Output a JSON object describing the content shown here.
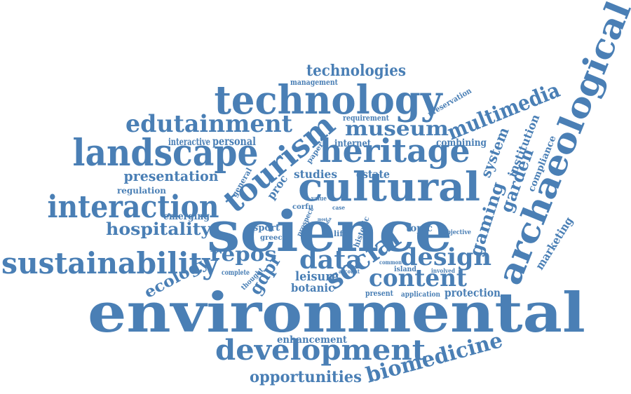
{
  "colors": {
    "word": "#4a7fb5",
    "background": "#ffffff"
  },
  "words": [
    "environmental",
    "science",
    "archaeological",
    "technology",
    "cultural",
    "heritage",
    "landscape",
    "tourism",
    "interaction",
    "sustainability",
    "development",
    "edutainment",
    "museum",
    "multimedia",
    "technologies",
    "social",
    "content",
    "data",
    "design",
    "biomedicine",
    "hospitality",
    "gaming",
    "repos",
    "opportunities",
    "presentation",
    "garden",
    "system",
    "institution",
    "compliance",
    "marketing",
    "ecology",
    "gdpr",
    "leisure",
    "botanic",
    "protection",
    "enhancement",
    "management",
    "preservation",
    "requirement",
    "internet",
    "interactive",
    "personal",
    "combining",
    "studies",
    "estate",
    "proc",
    "general",
    "regulation",
    "emerging",
    "paper",
    "value",
    "corfu",
    "case",
    "prospect",
    "sport",
    "greece",
    "life",
    "historic",
    "topic",
    "objective",
    "common",
    "island",
    "involved",
    "account",
    "complete",
    "thought",
    "present",
    "application",
    "most",
    "media"
  ]
}
